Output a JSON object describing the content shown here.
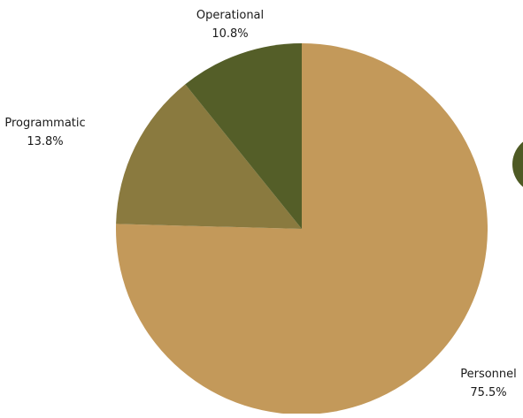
{
  "chart_data": {
    "type": "pie",
    "title": "",
    "slices": [
      {
        "label": "Personnel",
        "value": 75.5,
        "value_label": "75.5%",
        "color": "#C3995A"
      },
      {
        "label": "Programmatic",
        "value": 13.8,
        "value_label": "13.8%",
        "color": "#8A7A3F"
      },
      {
        "label": "Operational",
        "value": 10.8,
        "value_label": "10.8%",
        "color": "#545E28"
      }
    ],
    "decor_color": "#4E5A24"
  }
}
